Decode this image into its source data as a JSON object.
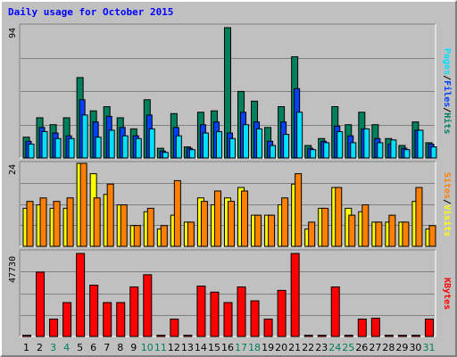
{
  "title": "Daily usage for October 2015",
  "colors": {
    "hits": "#00805c",
    "files": "#0040ff",
    "pages": "#00e0ff",
    "visits": "#ffff00",
    "sites": "#ff8000",
    "kbytes": "#ff0000",
    "weekday_label": "#000000",
    "weekend_label": "#00805c"
  },
  "chart_data": [
    {
      "type": "bar",
      "categories": [
        "1",
        "2",
        "3",
        "4",
        "5",
        "6",
        "7",
        "8",
        "9",
        "10",
        "11",
        "12",
        "13",
        "14",
        "15",
        "16",
        "17",
        "18",
        "19",
        "20",
        "21",
        "22",
        "23",
        "24",
        "25",
        "26",
        "27",
        "28",
        "29",
        "30",
        "31"
      ],
      "weekend_days": [
        "3",
        "4",
        "10",
        "11",
        "17",
        "18",
        "24",
        "25",
        "31"
      ],
      "ymax_label": "94",
      "ylim": [
        0,
        94
      ],
      "series": [
        {
          "name": "Hits",
          "values": [
            15,
            29,
            24,
            29,
            58,
            34,
            37,
            29,
            21,
            42,
            7,
            32,
            8,
            33,
            34,
            94,
            48,
            41,
            22,
            37,
            73,
            9,
            14,
            37,
            24,
            33,
            24,
            14,
            9,
            26,
            11
          ]
        },
        {
          "name": "Files",
          "values": [
            12,
            22,
            18,
            16,
            42,
            26,
            30,
            22,
            16,
            31,
            5,
            22,
            7,
            24,
            26,
            18,
            33,
            26,
            12,
            26,
            50,
            7,
            12,
            23,
            16,
            21,
            14,
            10,
            7,
            20,
            10
          ]
        },
        {
          "name": "Pages",
          "values": [
            10,
            19,
            14,
            14,
            31,
            15,
            20,
            16,
            14,
            21,
            4,
            16,
            6,
            18,
            19,
            14,
            24,
            21,
            9,
            17,
            33,
            6,
            11,
            19,
            11,
            21,
            11,
            13,
            6,
            20,
            8
          ]
        }
      ]
    },
    {
      "type": "bar",
      "categories": [
        "1",
        "2",
        "3",
        "4",
        "5",
        "6",
        "7",
        "8",
        "9",
        "10",
        "11",
        "12",
        "13",
        "14",
        "15",
        "16",
        "17",
        "18",
        "19",
        "20",
        "21",
        "22",
        "23",
        "24",
        "25",
        "26",
        "27",
        "28",
        "29",
        "30",
        "31"
      ],
      "ymax_label": "24",
      "ylim": [
        0,
        24
      ],
      "series": [
        {
          "name": "Visits",
          "values": [
            11,
            12,
            11,
            11,
            24,
            21,
            15,
            12,
            6,
            10,
            5,
            9,
            7,
            14,
            12,
            14,
            17,
            9,
            9,
            12,
            18,
            5,
            11,
            17,
            11,
            10,
            7,
            7,
            7,
            13,
            5
          ]
        },
        {
          "name": "Sites",
          "values": [
            13,
            14,
            13,
            14,
            24,
            14,
            18,
            12,
            6,
            11,
            6,
            19,
            7,
            13,
            16,
            13,
            16,
            9,
            9,
            14,
            21,
            7,
            11,
            17,
            9,
            12,
            7,
            9,
            7,
            17,
            6
          ]
        }
      ]
    },
    {
      "type": "bar",
      "categories": [
        "1",
        "2",
        "3",
        "4",
        "5",
        "6",
        "7",
        "8",
        "9",
        "10",
        "11",
        "12",
        "13",
        "14",
        "15",
        "16",
        "17",
        "18",
        "19",
        "20",
        "21",
        "22",
        "23",
        "24",
        "25",
        "26",
        "27",
        "28",
        "29",
        "30",
        "31"
      ],
      "ymax_label": "47730",
      "ylim": [
        0,
        47730
      ],
      "series": [
        {
          "name": "KBytes",
          "values": [
            700,
            37000,
            10000,
            19500,
            47730,
            29500,
            19500,
            19500,
            28500,
            35500,
            700,
            10000,
            700,
            29000,
            25500,
            19500,
            28500,
            20500,
            10000,
            26500,
            47730,
            700,
            700,
            28500,
            700,
            10000,
            10500,
            700,
            700,
            700,
            10000
          ]
        }
      ]
    }
  ]
}
